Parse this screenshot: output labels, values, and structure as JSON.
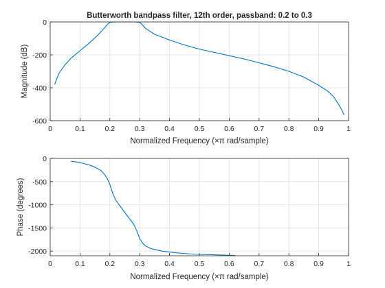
{
  "chart_data": [
    {
      "type": "line",
      "title": "Butterworth bandpass filter, 12th order, passband: 0.2 to 0.3",
      "xlabel": "Normalized Frequency  (×π rad/sample)",
      "ylabel": "Magnitude (dB)",
      "xlim": [
        0,
        1
      ],
      "ylim": [
        -600,
        0
      ],
      "xticks": [
        "0",
        "0.1",
        "0.2",
        "0.3",
        "0.4",
        "0.5",
        "0.6",
        "0.7",
        "0.8",
        "0.9",
        "1"
      ],
      "yticks": [
        "-600",
        "-400",
        "-200",
        "0"
      ],
      "grid": true,
      "color": "#0072BD",
      "series": [
        {
          "x": [
            0.015,
            0.02,
            0.03,
            0.05,
            0.07,
            0.1,
            0.13,
            0.16,
            0.18,
            0.195,
            0.2,
            0.22,
            0.25,
            0.28,
            0.3,
            0.305,
            0.32,
            0.35,
            0.4,
            0.45,
            0.5,
            0.55,
            0.6,
            0.65,
            0.7,
            0.75,
            0.8,
            0.85,
            0.9,
            0.93,
            0.95,
            0.97,
            0.98,
            0.985
          ],
          "y": [
            -380,
            -355,
            -310,
            -260,
            -220,
            -175,
            -130,
            -80,
            -40,
            -10,
            -2,
            0,
            0,
            0,
            -2,
            -10,
            -40,
            -75,
            -110,
            -140,
            -165,
            -185,
            -205,
            -225,
            -248,
            -272,
            -300,
            -335,
            -385,
            -420,
            -455,
            -510,
            -545,
            -565
          ]
        }
      ]
    },
    {
      "type": "line",
      "title": "",
      "xlabel": "Normalized Frequency  (×π rad/sample)",
      "ylabel": "Phase (degrees)",
      "xlim": [
        0,
        1
      ],
      "ylim": [
        -2100,
        0
      ],
      "xticks": [
        "0",
        "0.1",
        "0.2",
        "0.3",
        "0.4",
        "0.5",
        "0.6",
        "0.7",
        "0.8",
        "0.9",
        "1"
      ],
      "yticks": [
        "-2000",
        "-1500",
        "-1000",
        "-500",
        "0"
      ],
      "grid": true,
      "color": "#0072BD",
      "series": [
        {
          "x": [
            0.07,
            0.1,
            0.13,
            0.15,
            0.17,
            0.18,
            0.19,
            0.2,
            0.21,
            0.22,
            0.24,
            0.26,
            0.28,
            0.29,
            0.3,
            0.31,
            0.32,
            0.34,
            0.38,
            0.42,
            0.46,
            0.5,
            0.55,
            0.6,
            0.62
          ],
          "y": [
            -60,
            -90,
            -140,
            -190,
            -260,
            -330,
            -420,
            -560,
            -760,
            -900,
            -1080,
            -1250,
            -1420,
            -1560,
            -1730,
            -1830,
            -1890,
            -1950,
            -2005,
            -2035,
            -2055,
            -2070,
            -2080,
            -2090,
            -2093
          ]
        }
      ]
    }
  ]
}
